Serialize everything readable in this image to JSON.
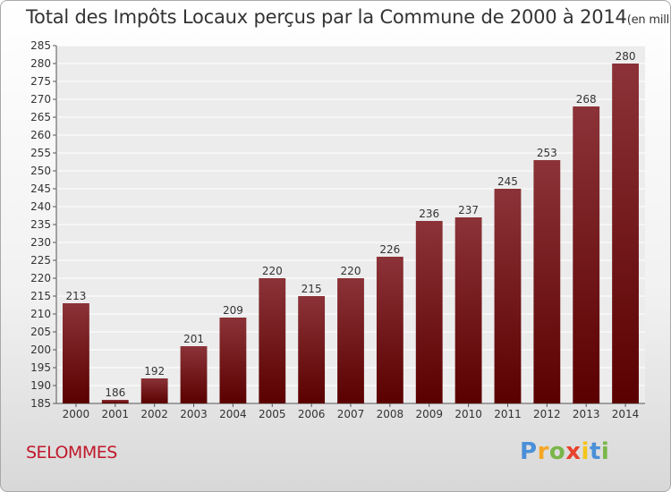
{
  "chart_data": {
    "type": "bar",
    "title": "Total des Impôts Locaux perçus par la Commune de 2000 à 2014",
    "subtitle": "(en milliers d'€)",
    "categories": [
      "2000",
      "2001",
      "2002",
      "2003",
      "2004",
      "2005",
      "2006",
      "2007",
      "2008",
      "2009",
      "2010",
      "2011",
      "2012",
      "2013",
      "2014"
    ],
    "values": [
      213,
      186,
      192,
      201,
      209,
      220,
      215,
      220,
      226,
      236,
      237,
      245,
      253,
      268,
      280
    ],
    "ylim": [
      185,
      285
    ],
    "yticks": [
      185,
      190,
      195,
      200,
      205,
      210,
      215,
      220,
      225,
      230,
      235,
      240,
      245,
      250,
      255,
      260,
      265,
      270,
      275,
      280,
      285
    ],
    "grid": true,
    "xlabel": "",
    "ylabel": "",
    "bar_color_top": "#8b3338",
    "bar_color_bottom": "#5a0000"
  },
  "commune": "SELOMMES",
  "logo": {
    "letters": [
      "P",
      "r",
      "o",
      "x",
      "i",
      "t",
      "i"
    ],
    "colors": [
      "#4a90d9",
      "#f5a623",
      "#7ab648",
      "#e8412c",
      "#f5c518",
      "#4a90d9",
      "#7ab648"
    ]
  }
}
